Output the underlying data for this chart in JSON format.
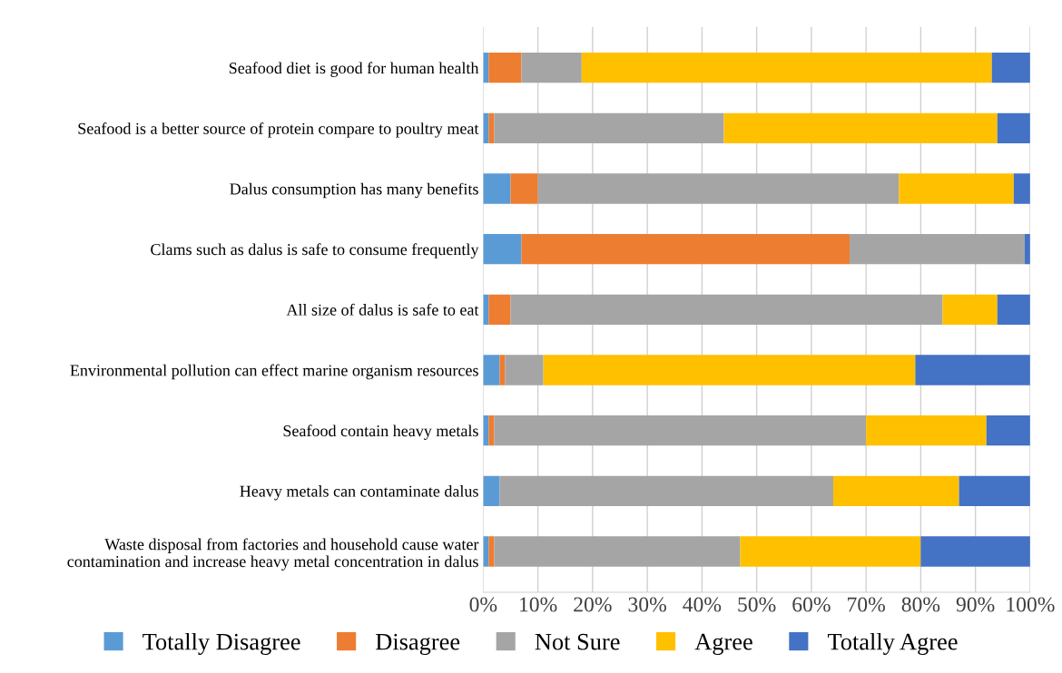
{
  "chart_data": {
    "type": "bar",
    "orientation": "horizontal",
    "stacked": true,
    "categories": [
      "Seafood diet is good for human health",
      "Seafood is a better source of protein compare to poultry meat",
      "Dalus consumption has many benefits",
      "Clams such as dalus is safe to consume frequently",
      "All size of dalus is safe to eat",
      "Environmental pollution can effect marine organism resources",
      "Seafood contain heavy metals",
      "Heavy metals can contaminate dalus",
      "Waste disposal from factories and household cause water\ncontamination and increase heavy metal concentration in dalus"
    ],
    "series": [
      {
        "name": "Totally Disagree",
        "color": "#5b9bd5",
        "values": [
          1,
          1,
          5,
          7,
          1,
          3,
          1,
          3,
          1
        ]
      },
      {
        "name": "Disagree",
        "color": "#ed7d31",
        "values": [
          6,
          1,
          5,
          60,
          4,
          1,
          1,
          0,
          1
        ]
      },
      {
        "name": "Not Sure",
        "color": "#a5a5a5",
        "values": [
          11,
          42,
          66,
          32,
          79,
          7,
          68,
          61,
          45
        ]
      },
      {
        "name": "Agree",
        "color": "#ffc000",
        "values": [
          75,
          50,
          21,
          0,
          10,
          68,
          22,
          23,
          33
        ]
      },
      {
        "name": "Totally Agree",
        "color": "#4472c4",
        "values": [
          7,
          6,
          3,
          1,
          6,
          21,
          8,
          13,
          20
        ]
      }
    ],
    "xlim": [
      0,
      100
    ],
    "xticks": [
      {
        "value": 0,
        "label": "0%"
      },
      {
        "value": 10,
        "label": "10%"
      },
      {
        "value": 20,
        "label": "20%"
      },
      {
        "value": 30,
        "label": "30%"
      },
      {
        "value": 40,
        "label": "40%"
      },
      {
        "value": 50,
        "label": "50%"
      },
      {
        "value": 60,
        "label": "60%"
      },
      {
        "value": 70,
        "label": "70%"
      },
      {
        "value": 80,
        "label": "80%"
      },
      {
        "value": 90,
        "label": "90%"
      },
      {
        "value": 100,
        "label": "100%"
      }
    ],
    "grid": "x",
    "legend": "bottom"
  }
}
